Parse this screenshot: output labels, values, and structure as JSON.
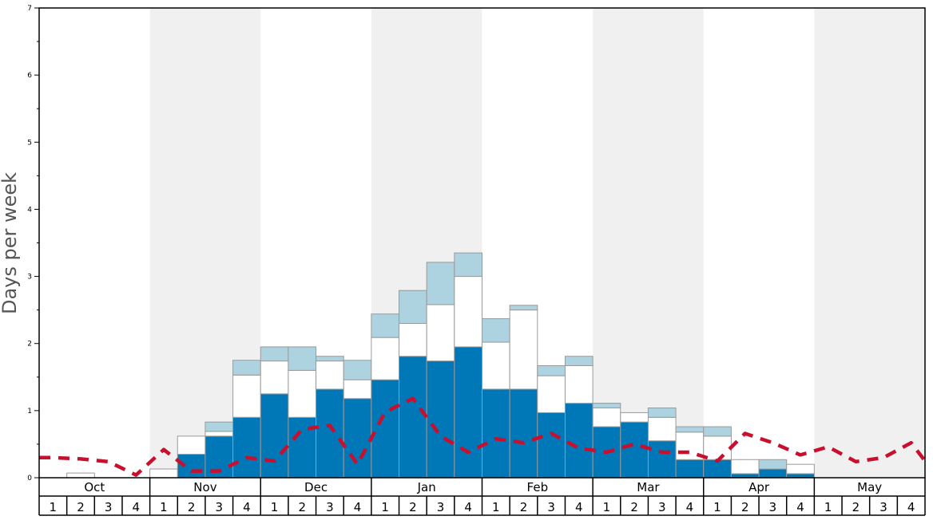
{
  "chart_data": {
    "type": "bar",
    "ylabel": "Days per week",
    "yticks": [
      0,
      1,
      2,
      3,
      4,
      5,
      6,
      7
    ],
    "ylim": [
      0,
      7
    ],
    "months": [
      "Oct",
      "Nov",
      "Dec",
      "Jan",
      "Feb",
      "Mar",
      "Apr",
      "May"
    ],
    "weeks": [
      "1",
      "2",
      "3",
      "4"
    ],
    "grid": "alternating month bands",
    "colors": {
      "bottom": "#0077b6",
      "middle": "#ffffff",
      "top": "#add3e0",
      "line": "#c8102e",
      "band": "#f0f0f0",
      "bar_edge": "#9a9a9a"
    },
    "series": [
      {
        "values": [
          0,
          0,
          0,
          0,
          0,
          0.35,
          0.62,
          0.9,
          1.25,
          0.9,
          1.32,
          1.18,
          1.46,
          1.81,
          1.74,
          1.95,
          1.32,
          1.32,
          0.97,
          1.11,
          0.76,
          0.83,
          0.55,
          0.27,
          0.27,
          0.06,
          0.13,
          0.06,
          0,
          0,
          0,
          0
        ]
      },
      {
        "values": [
          0,
          0.07,
          0,
          0,
          0.13,
          0.27,
          0.07,
          0.63,
          0.49,
          0.7,
          0.42,
          0.28,
          0.63,
          0.49,
          0.84,
          1.05,
          0.7,
          1.18,
          0.55,
          0.56,
          0.28,
          0.14,
          0.35,
          0.41,
          0.35,
          0.21,
          0,
          0.14,
          0,
          0,
          0,
          0
        ]
      },
      {
        "values": [
          0,
          0,
          0,
          0,
          0,
          0,
          0.14,
          0.22,
          0.21,
          0.35,
          0.07,
          0.29,
          0.35,
          0.49,
          0.63,
          0.35,
          0.35,
          0.07,
          0.15,
          0.14,
          0.07,
          0,
          0.14,
          0.08,
          0.14,
          0,
          0.14,
          0,
          0,
          0,
          0,
          0
        ]
      },
      {
        "type": "line",
        "values": [
          0.3,
          0.28,
          0.24,
          0.04,
          0.42,
          0.1,
          0.1,
          0.3,
          0.25,
          0.72,
          0.78,
          0.2,
          0.98,
          1.18,
          0.62,
          0.38,
          0.58,
          0.52,
          0.66,
          0.44,
          0.38,
          0.5,
          0.38,
          0.38,
          0.25,
          0.66,
          0.52,
          0.34,
          0.46,
          0.24,
          0.3,
          0.52
        ]
      },
      {
        "type": "line-tail",
        "values": [
          0.25
        ]
      }
    ]
  }
}
